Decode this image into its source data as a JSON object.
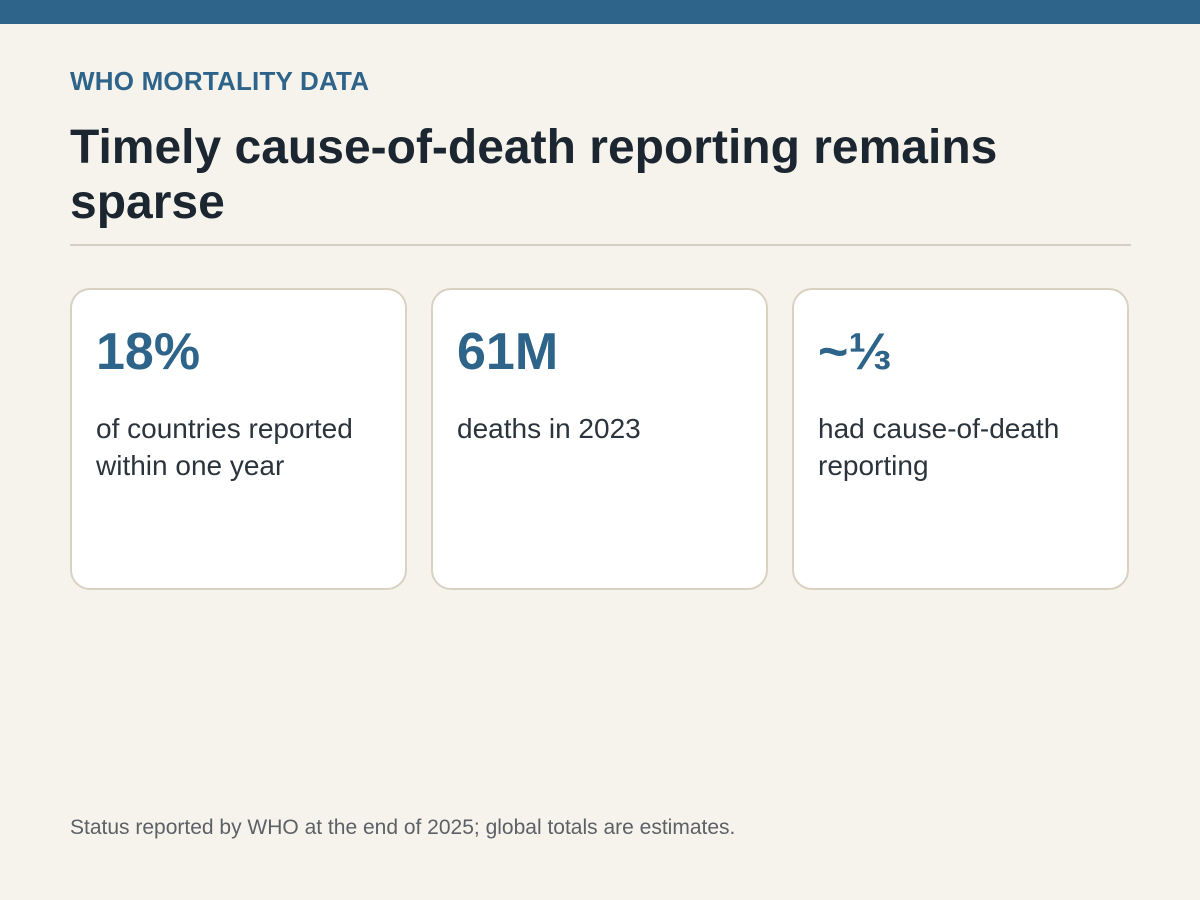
{
  "header": {
    "eyebrow": "WHO MORTALITY DATA",
    "title": "Timely cause-of-death reporting remains sparse"
  },
  "cards": [
    {
      "value": "18%",
      "label": "of countries reported within one year"
    },
    {
      "value": "61M",
      "label": "deaths in 2023"
    },
    {
      "value": "~⅓",
      "label": "had cause-of-death reporting"
    }
  ],
  "footnote": "Status reported by WHO at the end of 2025; global totals are estimates.",
  "colors": {
    "accent": "#2e6489",
    "background": "#f6f3ec",
    "card_border": "#d9d2c3"
  }
}
